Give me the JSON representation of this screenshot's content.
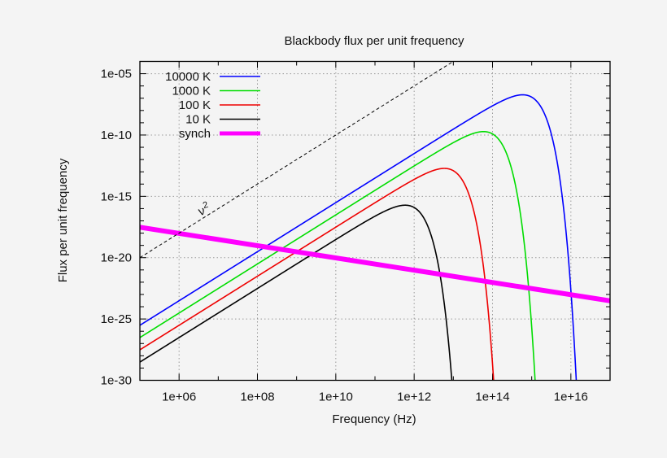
{
  "chart_data": {
    "type": "line",
    "title": "Blackbody flux per unit frequency",
    "xlabel": "Frequency (Hz)",
    "ylabel": "Flux per unit frequency",
    "xscale": "log",
    "yscale": "log",
    "xlim": [
      100000.0,
      1e+17
    ],
    "ylim": [
      1e-30,
      0.0001
    ],
    "grid": true,
    "legend_position": "top-left",
    "x_ticks": [
      {
        "value": 1000000.0,
        "label": "1e+06"
      },
      {
        "value": 100000000.0,
        "label": "1e+08"
      },
      {
        "value": 10000000000.0,
        "label": "1e+10"
      },
      {
        "value": 1000000000000.0,
        "label": "1e+12"
      },
      {
        "value": 100000000000000.0,
        "label": "1e+14"
      },
      {
        "value": 1e+16,
        "label": "1e+16"
      }
    ],
    "y_ticks": [
      {
        "value": 1e-05,
        "label": "1e-05"
      },
      {
        "value": 1e-10,
        "label": "1e-10"
      },
      {
        "value": 1e-15,
        "label": "1e-15"
      },
      {
        "value": 1e-20,
        "label": "1e-20"
      },
      {
        "value": 1e-25,
        "label": "1e-25"
      },
      {
        "value": 1e-30,
        "label": "1e-30"
      }
    ],
    "series": [
      {
        "name": "10000 K",
        "kind": "planck",
        "temperature_K": 10000,
        "color": "#0000ff"
      },
      {
        "name": "1000 K",
        "kind": "planck",
        "temperature_K": 1000,
        "color": "#00dd00"
      },
      {
        "name": "100 K",
        "kind": "planck",
        "temperature_K": 100,
        "color": "#ee0000"
      },
      {
        "name": "10 K",
        "kind": "planck",
        "temperature_K": 10,
        "color": "#000000"
      },
      {
        "name": "synch",
        "kind": "powerlaw",
        "points": [
          [
            100000.0,
            3e-18
          ],
          [
            1e+17,
            3e-24
          ]
        ],
        "color": "#ff00ff"
      }
    ],
    "annotations": [
      {
        "label": "ν",
        "superscript": "2",
        "kind": "powerlaw-dashed",
        "points": [
          [
            100000.0,
            1e-20
          ],
          [
            10000000000000.0,
            0.0001
          ]
        ],
        "color": "#000000"
      }
    ]
  }
}
